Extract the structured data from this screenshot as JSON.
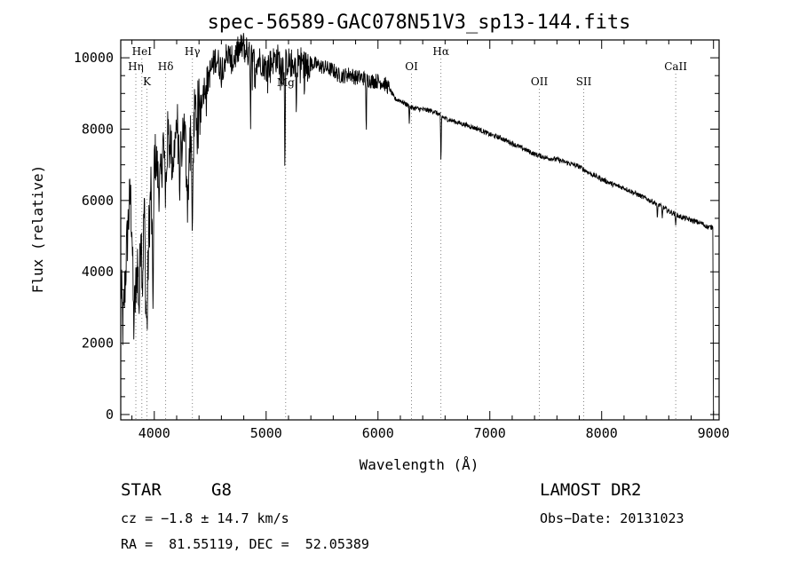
{
  "chart_data": {
    "type": "line",
    "title": "spec-56589-GAC078N51V3_sp13-144.fits",
    "xlabel": "Wavelength (Å)",
    "ylabel": "Flux (relative)",
    "xlim": [
      3700,
      9050
    ],
    "ylim": [
      -150,
      10500
    ],
    "xticks": [
      4000,
      5000,
      6000,
      7000,
      8000,
      9000
    ],
    "yticks": [
      0,
      2000,
      4000,
      6000,
      8000,
      10000
    ],
    "grid": false,
    "series": [
      {
        "anchors": [
          [
            3700,
            3800
          ],
          [
            3720,
            2400
          ],
          [
            3745,
            4100
          ],
          [
            3765,
            5300
          ],
          [
            3785,
            6100
          ],
          [
            3800,
            5400
          ],
          [
            3815,
            2500
          ],
          [
            3835,
            3500
          ],
          [
            3850,
            4300
          ],
          [
            3865,
            3000
          ],
          [
            3880,
            5500
          ],
          [
            3895,
            3700
          ],
          [
            3910,
            6000
          ],
          [
            3925,
            3100
          ],
          [
            3935,
            2400
          ],
          [
            3950,
            5000
          ],
          [
            3970,
            6400
          ],
          [
            3990,
            3200
          ],
          [
            4000,
            7300
          ],
          [
            4020,
            7100
          ],
          [
            4040,
            6400
          ],
          [
            4060,
            6600
          ],
          [
            4080,
            7700
          ],
          [
            4101,
            6200
          ],
          [
            4120,
            7800
          ],
          [
            4140,
            7900
          ],
          [
            4160,
            7000
          ],
          [
            4180,
            7400
          ],
          [
            4200,
            8300
          ],
          [
            4220,
            7600
          ],
          [
            4240,
            7300
          ],
          [
            4260,
            8200
          ],
          [
            4280,
            7600
          ],
          [
            4300,
            5900
          ],
          [
            4320,
            8200
          ],
          [
            4340,
            6900
          ],
          [
            4360,
            8400
          ],
          [
            4400,
            8700
          ],
          [
            4450,
            9200
          ],
          [
            4500,
            9600
          ],
          [
            4550,
            10000
          ],
          [
            4600,
            9700
          ],
          [
            4650,
            10100
          ],
          [
            4700,
            9900
          ],
          [
            4750,
            10200
          ],
          [
            4800,
            10350
          ],
          [
            4850,
            10050
          ],
          [
            4900,
            9900
          ],
          [
            4950,
            9950
          ],
          [
            5000,
            9700
          ],
          [
            5050,
            9900
          ],
          [
            5100,
            10000
          ],
          [
            5150,
            9800
          ],
          [
            5200,
            9900
          ],
          [
            5250,
            9800
          ],
          [
            5300,
            9950
          ],
          [
            5350,
            9800
          ],
          [
            5400,
            9850
          ],
          [
            5450,
            9800
          ],
          [
            5500,
            9750
          ],
          [
            5550,
            9700
          ],
          [
            5600,
            9650
          ],
          [
            5650,
            9500
          ],
          [
            5700,
            9500
          ],
          [
            5750,
            9550
          ],
          [
            5800,
            9450
          ],
          [
            5850,
            9450
          ],
          [
            5900,
            9400
          ],
          [
            5950,
            9350
          ],
          [
            6000,
            9350
          ],
          [
            6050,
            9300
          ],
          [
            6100,
            9150
          ],
          [
            6150,
            8850
          ],
          [
            6200,
            8800
          ],
          [
            6250,
            8700
          ],
          [
            6300,
            8600
          ],
          [
            6400,
            8550
          ],
          [
            6500,
            8500
          ],
          [
            6600,
            8300
          ],
          [
            6700,
            8200
          ],
          [
            6800,
            8100
          ],
          [
            6900,
            8000
          ],
          [
            7000,
            7850
          ],
          [
            7100,
            7750
          ],
          [
            7200,
            7600
          ],
          [
            7300,
            7450
          ],
          [
            7400,
            7300
          ],
          [
            7500,
            7200
          ],
          [
            7600,
            7150
          ],
          [
            7700,
            7050
          ],
          [
            7800,
            6950
          ],
          [
            7900,
            6750
          ],
          [
            8000,
            6600
          ],
          [
            8100,
            6450
          ],
          [
            8200,
            6350
          ],
          [
            8300,
            6200
          ],
          [
            8400,
            6050
          ],
          [
            8500,
            5900
          ],
          [
            8600,
            5700
          ],
          [
            8700,
            5550
          ],
          [
            8800,
            5450
          ],
          [
            8900,
            5350
          ],
          [
            8950,
            5250
          ],
          [
            8990,
            5250
          ]
        ],
        "absorption_dips": [
          [
            4227,
            5700
          ],
          [
            4340,
            4800
          ],
          [
            4384,
            7300
          ],
          [
            4861,
            8000
          ],
          [
            5168,
            6400
          ],
          [
            5270,
            8200
          ],
          [
            5895,
            7700
          ],
          [
            6280,
            8150
          ],
          [
            6563,
            6900
          ],
          [
            8498,
            5450
          ],
          [
            8542,
            5500
          ],
          [
            8662,
            5300
          ]
        ],
        "end_drop": [
          9000,
          0
        ]
      }
    ],
    "line_markers": [
      {
        "label": "Hη",
        "x": 3835,
        "row": 2
      },
      {
        "label": "HeI",
        "x": 3889,
        "row": 1
      },
      {
        "label": "K",
        "x": 3934,
        "row": 3
      },
      {
        "label": "Hδ",
        "x": 4102,
        "row": 2
      },
      {
        "label": "Hγ",
        "x": 4341,
        "row": 1
      },
      {
        "label": "Mg",
        "x": 5175,
        "row": 4
      },
      {
        "label": "OI",
        "x": 6300,
        "row": 2
      },
      {
        "label": "Hα",
        "x": 6563,
        "row": 1
      },
      {
        "label": "OII",
        "x": 7443,
        "row": 3
      },
      {
        "label": "SII",
        "x": 7840,
        "row": 3
      },
      {
        "label": "CaII",
        "x": 8662,
        "row": 2
      }
    ]
  },
  "info": {
    "object_class": "STAR",
    "subclass": "G8",
    "survey": "LAMOST DR2",
    "velocity": "cz = −1.8 ± 14.7 km/s",
    "obs_date": "Obs−Date: 20131023",
    "coords": "RA =  81.55119, DEC =  52.05389"
  }
}
